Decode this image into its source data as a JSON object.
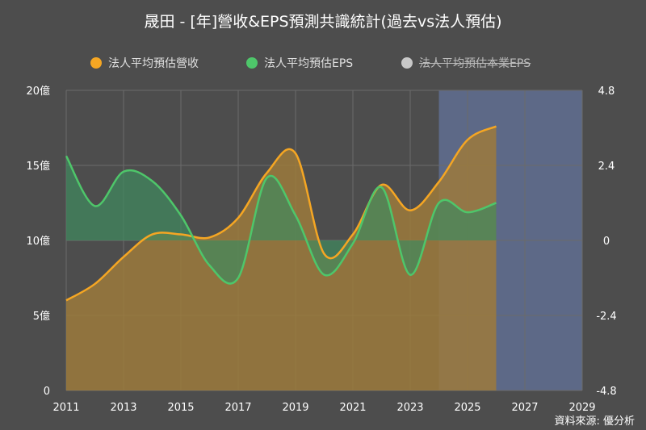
{
  "title": "晟田 - [年]營收&EPS預測共識統計(過去vs法人預估)",
  "source": "資料來源: 優分析",
  "legend": [
    {
      "label": "法人平均預估營收",
      "color": "#f5a623",
      "enabled": true
    },
    {
      "label": "法人平均預估EPS",
      "color": "#4ec66a",
      "enabled": true
    },
    {
      "label": "法人平均預估本業EPS",
      "color": "#c8c8c8",
      "enabled": false
    }
  ],
  "colors": {
    "revenue_line": "#f5a623",
    "revenue_fill": "#9c7a3c",
    "eps_line": "#4ec66a",
    "eps_fill": "#3f8a5e",
    "forecast_band": "#5e6a8a",
    "grid": "#6a6a6a",
    "background": "#4d4d4d"
  },
  "chart_data": {
    "type": "area",
    "x_ticks": [
      "2011",
      "2013",
      "2015",
      "2017",
      "2019",
      "2021",
      "2023",
      "2025",
      "2027",
      "2029"
    ],
    "xlim": [
      2011,
      2029
    ],
    "y_left_ticks": [
      "0",
      "5億",
      "10億",
      "15億",
      "20億"
    ],
    "ylim_left": [
      0,
      20
    ],
    "y_right_ticks": [
      "-4.8",
      "-2.4",
      "0",
      "2.4",
      "4.8"
    ],
    "ylim_right": [
      -4.8,
      4.8
    ],
    "forecast_region": [
      2024,
      2029
    ],
    "series": [
      {
        "name": "法人平均預估營收",
        "axis": "left",
        "unit": "億",
        "x": [
          2011,
          2012,
          2013,
          2014,
          2015,
          2016,
          2017,
          2018,
          2019,
          2020,
          2021,
          2022,
          2023,
          2024,
          2025,
          2026
        ],
        "values": [
          6.0,
          7.1,
          8.9,
          10.4,
          10.4,
          10.2,
          11.5,
          14.5,
          15.8,
          9.1,
          10.4,
          13.7,
          12.0,
          13.9,
          16.7,
          17.6
        ]
      },
      {
        "name": "法人平均預估EPS",
        "axis": "right",
        "x": [
          2011,
          2012,
          2013,
          2014,
          2015,
          2016,
          2017,
          2018,
          2019,
          2020,
          2021,
          2022,
          2023,
          2024,
          2025,
          2026
        ],
        "values": [
          2.7,
          1.1,
          2.2,
          1.9,
          0.8,
          -0.8,
          -1.2,
          2.0,
          0.8,
          -1.1,
          -0.1,
          1.7,
          -1.1,
          1.2,
          0.9,
          1.2
        ]
      }
    ]
  }
}
